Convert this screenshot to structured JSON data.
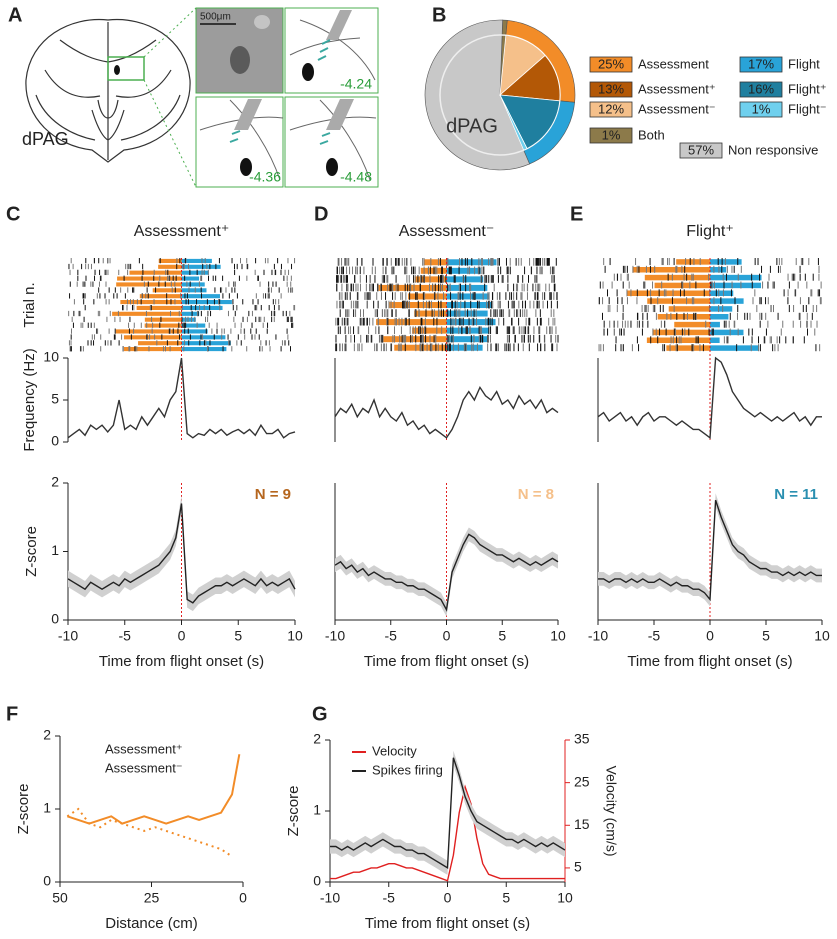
{
  "panel_labels": [
    "A",
    "B",
    "C",
    "D",
    "E",
    "F",
    "G"
  ],
  "atlas": {
    "region_label": "dPAG",
    "scale_bar": "500μm",
    "sections": [
      "-4.24",
      "-4.36",
      "-4.48"
    ]
  },
  "chart_data": [
    {
      "type": "pie",
      "center_label": "dPAG",
      "outer": {
        "categories": [
          "Both",
          "Assessment",
          "Flight",
          "Non responsive"
        ],
        "values": [
          1,
          25,
          17,
          57
        ],
        "value_labels": [
          "1%",
          "25%",
          "17%",
          "57%"
        ],
        "colors": [
          "#8c7a4a",
          "#f28c28",
          "#29a3d8",
          "#c8c8c8"
        ]
      },
      "inner": {
        "categories": [
          "Assessment⁻",
          "Assessment⁺",
          "Flight⁺",
          "Flight⁻"
        ],
        "values": [
          12,
          13,
          16,
          1
        ],
        "value_labels": [
          "12%",
          "13%",
          "16%",
          "1%"
        ],
        "colors": [
          "#f5c08a",
          "#b35806",
          "#1f7f9f",
          "#6fd0ee"
        ],
        "parents": [
          1,
          1,
          2,
          2
        ]
      }
    },
    {
      "type": "line",
      "title": "Assessment⁺",
      "raster_label": "Trial n.",
      "ylabel": "Frequency (Hz)",
      "xlim": [
        -10,
        10
      ],
      "ylim": [
        0,
        10
      ],
      "yticks": [
        0,
        5,
        10
      ],
      "onset_line": 0,
      "x": [
        -10,
        -9.5,
        -9,
        -8.5,
        -8,
        -7.5,
        -7,
        -6.5,
        -6,
        -5.5,
        -5,
        -4.5,
        -4,
        -3.5,
        -3,
        -2.5,
        -2,
        -1.5,
        -1,
        -0.5,
        0,
        0.5,
        1,
        1.5,
        2,
        2.5,
        3,
        3.5,
        4,
        4.5,
        5,
        5.5,
        6,
        6.5,
        7,
        7.5,
        8,
        8.5,
        9,
        9.5,
        10
      ],
      "series": [
        {
          "color": "#333333",
          "values": [
            0.5,
            1,
            1.5,
            0.8,
            2,
            1.5,
            2,
            1.2,
            2,
            5,
            1.5,
            2,
            1.5,
            3,
            2,
            3,
            4,
            3,
            5,
            6,
            10,
            1,
            0.5,
            1,
            0.8,
            1.5,
            1,
            1.5,
            0.8,
            1.2,
            1.5,
            1,
            1.5,
            0.8,
            2,
            1,
            1,
            1.5,
            0.5,
            1,
            1.2
          ]
        }
      ]
    },
    {
      "type": "line",
      "ylabel": "Z-score",
      "xlabel": "Time from flight onset (s)",
      "xlim": [
        -10,
        10
      ],
      "ylim": [
        0,
        2
      ],
      "yticks": [
        0,
        1,
        2
      ],
      "xticks": [
        -10,
        -5,
        0,
        5,
        10
      ],
      "onset_line": 0,
      "annotation": "N = 9",
      "annotation_color": "#b5651d",
      "x": [
        -10,
        -9.5,
        -9,
        -8.5,
        -8,
        -7.5,
        -7,
        -6.5,
        -6,
        -5.5,
        -5,
        -4.5,
        -4,
        -3.5,
        -3,
        -2.5,
        -2,
        -1.5,
        -1,
        -0.5,
        0,
        0.5,
        1,
        1.5,
        2,
        2.5,
        3,
        3.5,
        4,
        4.5,
        5,
        5.5,
        6,
        6.5,
        7,
        7.5,
        8,
        8.5,
        9,
        9.5,
        10
      ],
      "series": [
        {
          "color": "#222222",
          "sem": 0.12,
          "band_color": "#d0d0d0",
          "values": [
            0.6,
            0.55,
            0.5,
            0.45,
            0.55,
            0.5,
            0.45,
            0.5,
            0.55,
            0.5,
            0.6,
            0.55,
            0.6,
            0.65,
            0.7,
            0.75,
            0.8,
            0.9,
            1.0,
            1.2,
            1.7,
            0.3,
            0.25,
            0.35,
            0.4,
            0.45,
            0.5,
            0.5,
            0.55,
            0.5,
            0.55,
            0.6,
            0.55,
            0.5,
            0.6,
            0.5,
            0.55,
            0.5,
            0.55,
            0.6,
            0.45
          ]
        }
      ]
    },
    {
      "type": "line",
      "title": "Assessment⁻",
      "xlim": [
        -10,
        10
      ],
      "ylim": [
        0,
        10
      ],
      "onset_line": 0,
      "x": [
        -10,
        -9.5,
        -9,
        -8.5,
        -8,
        -7.5,
        -7,
        -6.5,
        -6,
        -5.5,
        -5,
        -4.5,
        -4,
        -3.5,
        -3,
        -2.5,
        -2,
        -1.5,
        -1,
        -0.5,
        0,
        0.5,
        1,
        1.5,
        2,
        2.5,
        3,
        3.5,
        4,
        4.5,
        5,
        5.5,
        6,
        6.5,
        7,
        7.5,
        8,
        8.5,
        9,
        9.5,
        10
      ],
      "series": [
        {
          "color": "#333333",
          "values": [
            3,
            4,
            3.5,
            4.5,
            3,
            4,
            3.5,
            5,
            3,
            4,
            3,
            2.5,
            3.5,
            2,
            2.5,
            1.5,
            2,
            1,
            1.5,
            1,
            0.5,
            1.5,
            3,
            5,
            6,
            5,
            6.5,
            5.5,
            5,
            6,
            4.5,
            5,
            4,
            5.5,
            4.5,
            5,
            4,
            5,
            3.5,
            4,
            3.5
          ]
        }
      ]
    },
    {
      "type": "line",
      "xlabel": "Time from flight onset (s)",
      "xlim": [
        -10,
        10
      ],
      "ylim": [
        0,
        2
      ],
      "xticks": [
        -10,
        -5,
        0,
        5,
        10
      ],
      "onset_line": 0,
      "annotation": "N = 8",
      "annotation_color": "#f5c08a",
      "x": [
        -10,
        -9.5,
        -9,
        -8.5,
        -8,
        -7.5,
        -7,
        -6.5,
        -6,
        -5.5,
        -5,
        -4.5,
        -4,
        -3.5,
        -3,
        -2.5,
        -2,
        -1.5,
        -1,
        -0.5,
        0,
        0.5,
        1,
        1.5,
        2,
        2.5,
        3,
        3.5,
        4,
        4.5,
        5,
        5.5,
        6,
        6.5,
        7,
        7.5,
        8,
        8.5,
        9,
        9.5,
        10
      ],
      "series": [
        {
          "color": "#222222",
          "sem": 0.1,
          "band_color": "#d0d0d0",
          "values": [
            0.8,
            0.85,
            0.75,
            0.8,
            0.7,
            0.75,
            0.65,
            0.7,
            0.65,
            0.6,
            0.6,
            0.55,
            0.55,
            0.5,
            0.5,
            0.45,
            0.45,
            0.4,
            0.35,
            0.3,
            0.15,
            0.7,
            0.9,
            1.1,
            1.25,
            1.2,
            1.1,
            1.05,
            1.0,
            0.95,
            0.95,
            0.9,
            0.85,
            0.9,
            0.85,
            0.8,
            0.85,
            0.8,
            0.85,
            0.9,
            0.85
          ]
        }
      ]
    },
    {
      "type": "line",
      "title": "Flight⁺",
      "xlim": [
        -10,
        10
      ],
      "ylim": [
        0,
        10
      ],
      "onset_line": 0,
      "x": [
        -10,
        -9.5,
        -9,
        -8.5,
        -8,
        -7.5,
        -7,
        -6.5,
        -6,
        -5.5,
        -5,
        -4.5,
        -4,
        -3.5,
        -3,
        -2.5,
        -2,
        -1.5,
        -1,
        -0.5,
        0,
        0.5,
        1,
        1.5,
        2,
        2.5,
        3,
        3.5,
        4,
        4.5,
        5,
        5.5,
        6,
        6.5,
        7,
        7.5,
        8,
        8.5,
        9,
        9.5,
        10
      ],
      "series": [
        {
          "color": "#333333",
          "values": [
            3,
            3.5,
            2.5,
            3,
            3.5,
            2.5,
            3,
            2,
            3,
            3.5,
            2.5,
            3,
            3,
            2.5,
            2,
            2.5,
            2,
            1.5,
            1.5,
            1,
            0.5,
            10,
            9.5,
            8,
            6,
            5,
            4,
            3.5,
            3,
            3.5,
            3,
            2.5,
            3,
            2.5,
            3,
            3.5,
            2.5,
            3,
            2,
            3,
            3
          ]
        }
      ]
    },
    {
      "type": "line",
      "xlabel": "Time from flight onset (s)",
      "xlim": [
        -10,
        10
      ],
      "ylim": [
        0,
        2
      ],
      "xticks": [
        -10,
        -5,
        0,
        5,
        10
      ],
      "onset_line": 0,
      "annotation": "N = 11",
      "annotation_color": "#2a8fb0",
      "x": [
        -10,
        -9.5,
        -9,
        -8.5,
        -8,
        -7.5,
        -7,
        -6.5,
        -6,
        -5.5,
        -5,
        -4.5,
        -4,
        -3.5,
        -3,
        -2.5,
        -2,
        -1.5,
        -1,
        -0.5,
        0,
        0.5,
        1,
        1.5,
        2,
        2.5,
        3,
        3.5,
        4,
        4.5,
        5,
        5.5,
        6,
        6.5,
        7,
        7.5,
        8,
        8.5,
        9,
        9.5,
        10
      ],
      "series": [
        {
          "color": "#222222",
          "sem": 0.1,
          "band_color": "#d0d0d0",
          "values": [
            0.6,
            0.6,
            0.55,
            0.6,
            0.6,
            0.55,
            0.6,
            0.55,
            0.6,
            0.55,
            0.55,
            0.6,
            0.55,
            0.5,
            0.55,
            0.5,
            0.5,
            0.45,
            0.45,
            0.4,
            0.3,
            1.75,
            1.5,
            1.3,
            1.1,
            1.0,
            0.95,
            0.85,
            0.8,
            0.75,
            0.75,
            0.7,
            0.7,
            0.65,
            0.7,
            0.65,
            0.7,
            0.65,
            0.7,
            0.65,
            0.65
          ]
        }
      ]
    },
    {
      "type": "line",
      "ylabel": "Z-score",
      "xlabel": "Distance (cm)",
      "xlim": [
        50,
        0
      ],
      "ylim": [
        0,
        2
      ],
      "xticks": [
        50,
        25,
        0
      ],
      "yticks": [
        0,
        1,
        2
      ],
      "x": [
        48,
        45,
        42,
        39,
        36,
        33,
        30,
        27,
        24,
        21,
        18,
        15,
        12,
        9,
        6,
        3,
        1
      ],
      "series": [
        {
          "name": "Assessment⁺",
          "color": "#f28c28",
          "style": "solid",
          "values": [
            0.9,
            0.85,
            0.8,
            0.85,
            0.9,
            0.8,
            0.85,
            0.9,
            0.85,
            0.8,
            0.85,
            0.9,
            0.85,
            0.9,
            0.95,
            1.2,
            1.75
          ]
        },
        {
          "name": "Assessment⁻",
          "color": "#f28c28",
          "style": "dotted",
          "values": [
            0.9,
            1.0,
            0.8,
            0.75,
            0.85,
            0.8,
            0.75,
            0.7,
            0.75,
            0.7,
            0.65,
            0.6,
            0.55,
            0.5,
            0.45,
            0.35,
            null
          ]
        }
      ]
    },
    {
      "type": "line",
      "ylabel": "Z-score",
      "y2label": "Velocity (cm/s)",
      "xlabel": "Time from flight onset (s)",
      "xlim": [
        -10,
        10
      ],
      "ylim": [
        0,
        2
      ],
      "y2lim": [
        1.7,
        35
      ],
      "xticks": [
        -10,
        -5,
        0,
        5,
        10
      ],
      "yticks": [
        0,
        1,
        2
      ],
      "y2ticks": [
        5,
        15,
        25,
        35
      ],
      "x": [
        -10,
        -9.5,
        -9,
        -8.5,
        -8,
        -7.5,
        -7,
        -6.5,
        -6,
        -5.5,
        -5,
        -4.5,
        -4,
        -3.5,
        -3,
        -2.5,
        -2,
        -1.5,
        -1,
        -0.5,
        0,
        0.5,
        1,
        1.5,
        2,
        2.5,
        3,
        3.5,
        4,
        4.5,
        5,
        5.5,
        6,
        6.5,
        7,
        7.5,
        8,
        8.5,
        9,
        9.5,
        10
      ],
      "series": [
        {
          "name": "Velocity",
          "color": "#e02020",
          "axis": "y2",
          "values": [
            2.5,
            2.5,
            3,
            3.5,
            4,
            4,
            4.5,
            5,
            5,
            5.5,
            6,
            6,
            5.5,
            5,
            5,
            4.5,
            4,
            3.5,
            3,
            2.5,
            2,
            8,
            18,
            24,
            20,
            12,
            6,
            3.5,
            3,
            2.5,
            2.5,
            2.5,
            2.5,
            2.5,
            2.5,
            2.5,
            2.5,
            2.5,
            2.5,
            2.5,
            2.5
          ]
        },
        {
          "name": "Spikes firing",
          "color": "#222222",
          "sem": 0.1,
          "band_color": "#d0d0d0",
          "values": [
            0.5,
            0.5,
            0.45,
            0.5,
            0.45,
            0.5,
            0.55,
            0.5,
            0.55,
            0.6,
            0.55,
            0.5,
            0.5,
            0.45,
            0.45,
            0.4,
            0.4,
            0.35,
            0.3,
            0.25,
            0.2,
            1.75,
            1.5,
            1.2,
            1.0,
            0.85,
            0.8,
            0.75,
            0.7,
            0.65,
            0.6,
            0.6,
            0.55,
            0.6,
            0.55,
            0.5,
            0.55,
            0.5,
            0.55,
            0.5,
            0.45
          ]
        }
      ]
    }
  ]
}
